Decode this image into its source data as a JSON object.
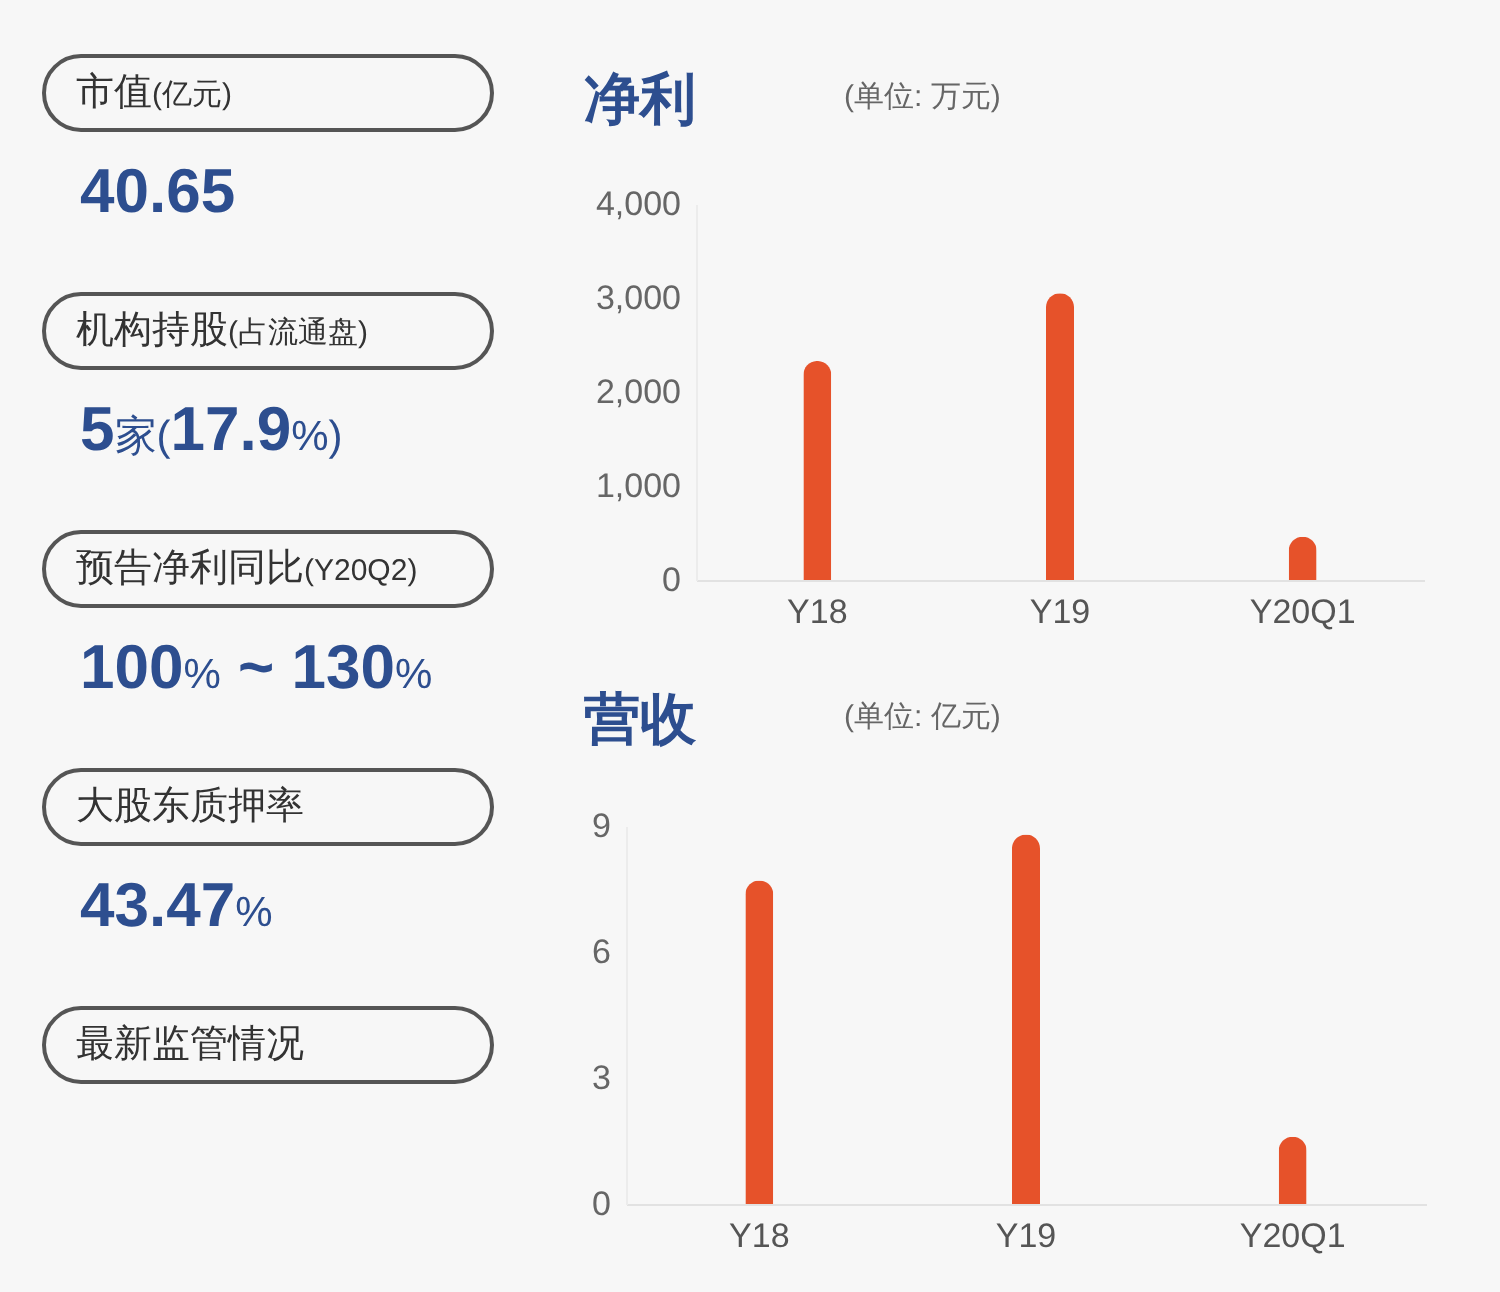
{
  "chart_data": [
    {
      "type": "other",
      "annotations": [
        "市值(亿元)",
        "40.65",
        "机构持股(占流通盘)",
        "5家(17.9%)",
        "预告净利同比(Y20Q2)",
        "100% ~ 130%",
        "大股东质押率",
        "43.47%",
        "最新监管情况"
      ]
    },
    {
      "type": "bar",
      "title": "净利",
      "subtitle": "(单位: 万元)",
      "categories": [
        "Y18",
        "Y19",
        "Y20Q1"
      ],
      "values": [
        2330,
        3050,
        460
      ],
      "color": "#e6522a",
      "ylim": [
        0,
        4000
      ],
      "yticks": [
        0,
        {
          "value": 1000,
          "label": "1,000"
        },
        {
          "value": 2000,
          "label": "2,000"
        },
        {
          "value": 3000,
          "label": "3,000"
        },
        {
          "value": 4000,
          "label": "4,000"
        }
      ]
    },
    {
      "type": "bar",
      "title": "营收",
      "subtitle": "(单位: 亿元)",
      "categories": [
        "Y18",
        "Y19",
        "Y20Q1"
      ],
      "values": [
        7.7,
        8.8,
        1.6
      ],
      "color": "#e6522a",
      "ylim": [
        0,
        9
      ],
      "yticks": [
        0,
        3,
        6,
        9
      ]
    }
  ]
}
